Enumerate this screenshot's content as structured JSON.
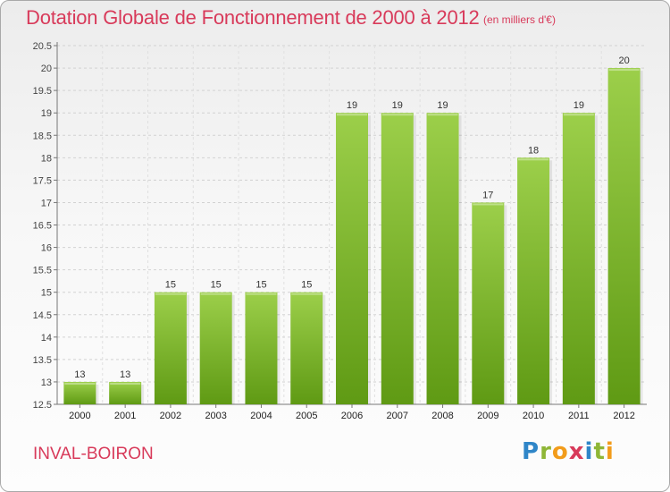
{
  "title": "Dotation Globale de Fonctionnement de 2000 à 2012",
  "unit_note": "(en milliers d'€)",
  "location": "INVAL-BOIRON",
  "logo": {
    "text": "Proxiti",
    "colors": [
      "#2f86c8",
      "#8fb636",
      "#f29c1b",
      "#d83a5a",
      "#2f86c8",
      "#8fb636",
      "#f29c1b"
    ]
  },
  "colors": {
    "title": "#d83a5a",
    "bar_top": "#9ccf4a",
    "bar_bottom": "#5f9a14"
  },
  "chart_data": {
    "type": "bar",
    "title": "Dotation Globale de Fonctionnement de 2000 à 2012",
    "subtitle": "(en milliers d'€)",
    "categories": [
      "2000",
      "2001",
      "2002",
      "2003",
      "2004",
      "2005",
      "2006",
      "2007",
      "2008",
      "2009",
      "2010",
      "2011",
      "2012"
    ],
    "values": [
      13,
      13,
      15,
      15,
      15,
      15,
      19,
      19,
      19,
      17,
      18,
      19,
      20
    ],
    "ylim": [
      12.5,
      20.5
    ],
    "yticks": [
      "12.5",
      "13",
      "13.5",
      "14",
      "14.5",
      "15",
      "15.5",
      "16",
      "16.5",
      "17",
      "17.5",
      "18",
      "18.5",
      "19",
      "19.5",
      "20",
      "20.5"
    ],
    "xlabel": "",
    "ylabel": "",
    "grid": true,
    "legend": "none"
  }
}
